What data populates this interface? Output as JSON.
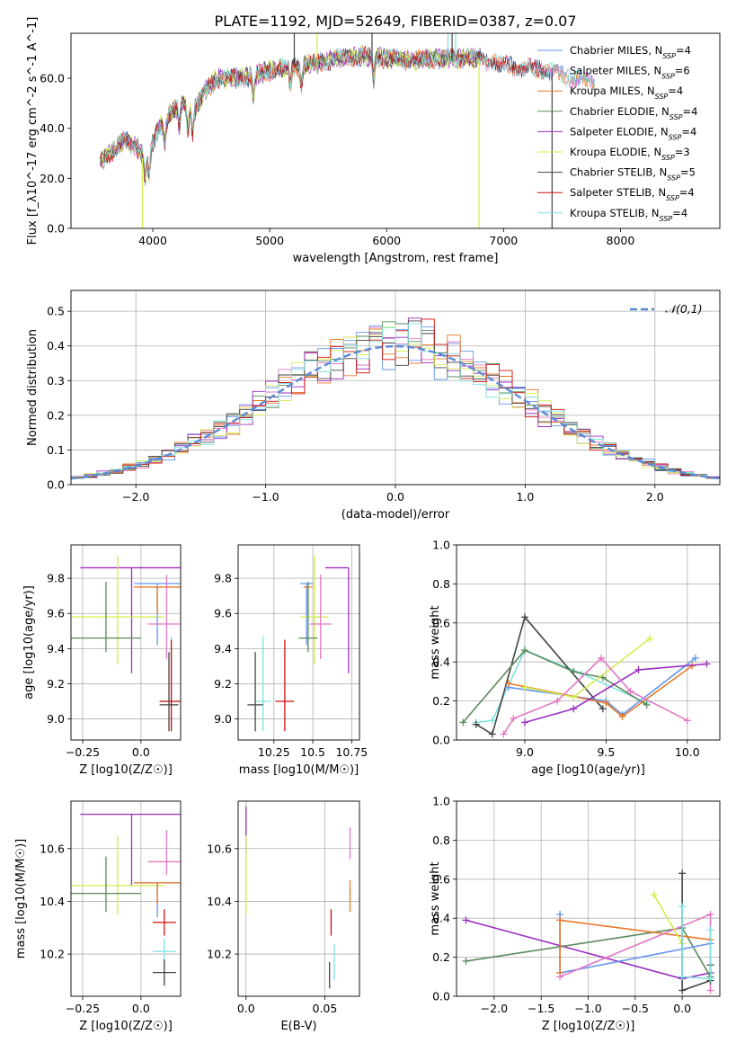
{
  "title": "PLATE=1192, MJD=52649, FIBERID=0387, z=0.07",
  "colors": {
    "chabrier_miles": "#6495ed",
    "salpeter_miles": "#e377c2",
    "kroupa_miles": "#e8792a",
    "chabrier_elodie": "#5b8a5b",
    "salpeter_elodie": "#9a2dc0",
    "kroupa_elodie": "#d4ed4a",
    "chabrier_stelib": "#444444",
    "salpeter_stelib": "#cc1111",
    "kroupa_stelib": "#7fe0e0",
    "normal": "#5b8ad6",
    "grid": "#b0b0b0"
  },
  "chart_data": [
    {
      "id": "spectrum",
      "type": "line",
      "xlabel": "wavelength [Angstrom, rest frame]",
      "ylabel": "Flux [f_λ10^-17 erg cm^-2 s^-1 A^-1]",
      "xlim": [
        3300,
        8850
      ],
      "ylim": [
        0,
        78
      ],
      "xticks": [
        4000,
        5000,
        6000,
        7000,
        8000
      ],
      "yticks": [
        0,
        20,
        40,
        60
      ],
      "grid": false,
      "legend_position": "top-right",
      "continuum": {
        "x": [
          3550,
          3650,
          3750,
          3850,
          3950,
          4050,
          4150,
          4250,
          4350,
          4450,
          4550,
          4700,
          4850,
          5000,
          5200,
          5400,
          5600,
          5800,
          6000,
          6200,
          6400,
          6600,
          6800,
          7000,
          7200,
          7400,
          7600,
          7800
        ],
        "y": [
          27,
          30,
          35,
          33,
          28,
          40,
          46,
          50,
          47,
          55,
          60,
          60,
          61,
          63,
          65,
          66,
          68,
          69,
          68,
          67,
          68,
          68,
          68,
          65,
          64,
          63,
          60,
          58
        ]
      },
      "series": [
        {
          "name": "Chabrier MILES, N_SSP=4",
          "color_key": "chabrier_miles",
          "end": 7780
        },
        {
          "name": "Salpeter MILES, N_SSP=6",
          "color_key": "salpeter_miles",
          "end": 7780
        },
        {
          "name": "Kroupa MILES, N_SSP=4",
          "color_key": "kroupa_miles",
          "end": 7780
        },
        {
          "name": "Chabrier ELODIE, N_SSP=4",
          "color_key": "chabrier_elodie",
          "end": 6800
        },
        {
          "name": "Salpeter ELODIE, N_SSP=4",
          "color_key": "salpeter_elodie",
          "end": 6800
        },
        {
          "name": "Kroupa ELODIE, N_SSP=3",
          "color_key": "kroupa_elodie",
          "end": 6800
        },
        {
          "name": "Chabrier STELIB, N_SSP=5",
          "color_key": "chabrier_stelib",
          "end": 7400
        },
        {
          "name": "Salpeter STELIB, N_SSP=4",
          "color_key": "salpeter_stelib",
          "end": 7400
        },
        {
          "name": "Kroupa STELIB, N_SSP=4",
          "color_key": "kroupa_stelib",
          "end": 7780
        }
      ],
      "spikes": [
        {
          "x": 3910,
          "ymin": 0,
          "ymax": 28,
          "color_key": "kroupa_elodie"
        },
        {
          "x": 5210,
          "ymin": 65,
          "ymax": 78,
          "color_key": "chabrier_stelib"
        },
        {
          "x": 5405,
          "ymin": 65,
          "ymax": 78,
          "color_key": "kroupa_elodie"
        },
        {
          "x": 5875,
          "ymin": 66,
          "ymax": 78,
          "color_key": "chabrier_stelib"
        },
        {
          "x": 6525,
          "ymin": 67,
          "ymax": 78,
          "color_key": "kroupa_stelib"
        },
        {
          "x": 6560,
          "ymin": 67,
          "ymax": 78,
          "color_key": "chabrier_stelib"
        },
        {
          "x": 6590,
          "ymin": 67,
          "ymax": 78,
          "color_key": "kroupa_stelib"
        },
        {
          "x": 6790,
          "ymin": 0,
          "ymax": 68,
          "color_key": "kroupa_elodie"
        },
        {
          "x": 7415,
          "ymin": 0,
          "ymax": 64,
          "color_key": "chabrier_stelib"
        }
      ]
    },
    {
      "id": "residuals",
      "type": "histogram",
      "xlabel": "(data-model)/error",
      "ylabel": "Normed distribution",
      "xlim": [
        -2.5,
        2.5
      ],
      "ylim": [
        0,
        0.56
      ],
      "xticks": [
        -2,
        -1,
        0,
        1,
        2
      ],
      "yticks": [
        0.0,
        0.1,
        0.2,
        0.3,
        0.4,
        0.5
      ],
      "grid": true,
      "legend_position": "top-right",
      "normal_label": "𝒩(0,1)",
      "bin_width": 0.1,
      "bin_start": -2.5,
      "bin_centers_reference": "gaussian"
    },
    {
      "id": "age_vs_Z",
      "type": "errorbar",
      "xlabel": "Z [log10(Z/Z☉)]",
      "ylabel": "age [log10(age/yr)]",
      "xlim": [
        -0.3,
        0.17
      ],
      "ylim": [
        8.88,
        9.99
      ],
      "xticks": [
        -0.25,
        0.0
      ],
      "yticks": [
        9.0,
        9.2,
        9.4,
        9.6,
        9.8
      ],
      "points": [
        {
          "color_key": "salpeter_elodie",
          "x": -0.04,
          "xerr": 0.22,
          "y": 9.86,
          "yerr_lo": 0.6,
          "yerr_hi": 0.0
        },
        {
          "color_key": "kroupa_elodie",
          "x": -0.1,
          "xerr": 0.2,
          "y": 9.58,
          "yerr_lo": 0.27,
          "yerr_hi": 0.35
        },
        {
          "color_key": "chabrier_elodie",
          "x": -0.15,
          "xerr": 0.15,
          "y": 9.46,
          "yerr_lo": 0.08,
          "yerr_hi": 0.32
        },
        {
          "color_key": "chabrier_miles",
          "x": 0.07,
          "xerr": 0.1,
          "y": 9.77,
          "yerr_lo": 0.35,
          "yerr_hi": 0.0
        },
        {
          "color_key": "kroupa_miles",
          "x": 0.07,
          "xerr": 0.1,
          "y": 9.75,
          "yerr_lo": 0.15,
          "yerr_hi": 0.0
        },
        {
          "color_key": "salpeter_miles",
          "x": 0.11,
          "xerr": 0.08,
          "y": 9.54,
          "yerr_lo": 0.2,
          "yerr_hi": 0.28
        },
        {
          "color_key": "kroupa_stelib",
          "x": 0.13,
          "xerr": 0.05,
          "y": 9.1,
          "yerr_lo": 0.17,
          "yerr_hi": 0.37
        },
        {
          "color_key": "salpeter_stelib",
          "x": 0.13,
          "xerr": 0.05,
          "y": 9.1,
          "yerr_lo": 0.17,
          "yerr_hi": 0.35
        },
        {
          "color_key": "chabrier_stelib",
          "x": 0.12,
          "xerr": 0.04,
          "y": 9.08,
          "yerr_lo": 0.15,
          "yerr_hi": 0.3
        }
      ]
    },
    {
      "id": "age_vs_mass",
      "type": "errorbar",
      "xlabel": "mass [log10(M/M☉)]",
      "ylabel": "",
      "xlim": [
        10.02,
        10.8
      ],
      "ylim": [
        8.88,
        9.99
      ],
      "xticks": [
        10.25,
        10.5,
        10.75
      ],
      "yticks": [
        9.0,
        9.2,
        9.4,
        9.6,
        9.8
      ],
      "points": [
        {
          "color_key": "salpeter_elodie",
          "x": 10.73,
          "xerr_lo": 0.15,
          "xerr_hi": 0.0,
          "y": 9.86,
          "yerr_lo": 0.6,
          "yerr_hi": 0.0
        },
        {
          "color_key": "chabrier_miles",
          "x": 10.46,
          "xerr": 0.04,
          "y": 9.77,
          "yerr_lo": 0.35,
          "yerr_hi": 0.0
        },
        {
          "color_key": "kroupa_miles",
          "x": 10.47,
          "xerr": 0.03,
          "y": 9.75,
          "yerr_lo": 0.15,
          "yerr_hi": 0.0
        },
        {
          "color_key": "kroupa_elodie",
          "x": 10.51,
          "xerr": 0.09,
          "y": 9.58,
          "yerr_lo": 0.27,
          "yerr_hi": 0.35
        },
        {
          "color_key": "salpeter_miles",
          "x": 10.55,
          "xerr": 0.07,
          "y": 9.54,
          "yerr_lo": 0.2,
          "yerr_hi": 0.28
        },
        {
          "color_key": "chabrier_elodie",
          "x": 10.47,
          "xerr": 0.06,
          "y": 9.46,
          "yerr_lo": 0.08,
          "yerr_hi": 0.32
        },
        {
          "color_key": "kroupa_stelib",
          "x": 10.18,
          "xerr": 0.05,
          "y": 9.1,
          "yerr_lo": 0.17,
          "yerr_hi": 0.37
        },
        {
          "color_key": "salpeter_stelib",
          "x": 10.32,
          "xerr": 0.06,
          "y": 9.1,
          "yerr_lo": 0.17,
          "yerr_hi": 0.35
        },
        {
          "color_key": "chabrier_stelib",
          "x": 10.13,
          "xerr": 0.05,
          "y": 9.08,
          "yerr_lo": 0.15,
          "yerr_hi": 0.3
        }
      ]
    },
    {
      "id": "weight_vs_age",
      "type": "line",
      "xlabel": "age [log10(age/yr)]",
      "ylabel": "mass weight",
      "xlim": [
        8.58,
        10.2
      ],
      "ylim": [
        0,
        1
      ],
      "xticks": [
        9.0,
        9.5,
        10.0
      ],
      "yticks": [
        0.0,
        0.2,
        0.4,
        0.6,
        0.8,
        1.0
      ],
      "series": [
        {
          "color_key": "kroupa_stelib",
          "x": [
            8.7,
            8.8,
            9.0,
            9.35,
            9.75
          ],
          "y": [
            0.09,
            0.1,
            0.46,
            0.34,
            0.19
          ]
        },
        {
          "color_key": "chabrier_stelib",
          "x": [
            8.7,
            8.8,
            9.0,
            9.48
          ],
          "y": [
            0.08,
            0.03,
            0.63,
            0.16
          ]
        },
        {
          "color_key": "chabrier_elodie",
          "x": [
            8.62,
            9.0,
            9.3,
            9.48,
            9.75
          ],
          "y": [
            0.09,
            0.46,
            0.35,
            0.32,
            0.18
          ]
        },
        {
          "color_key": "chabrier_miles",
          "x": [
            8.9,
            9.5,
            9.6,
            10.05
          ],
          "y": [
            0.27,
            0.2,
            0.13,
            0.42
          ]
        },
        {
          "color_key": "kroupa_miles",
          "x": [
            8.9,
            9.5,
            9.6,
            10.03
          ],
          "y": [
            0.29,
            0.19,
            0.12,
            0.38
          ]
        },
        {
          "color_key": "salpeter_elodie",
          "x": [
            9.0,
            9.3,
            9.7,
            10.12
          ],
          "y": [
            0.09,
            0.16,
            0.36,
            0.39
          ]
        },
        {
          "color_key": "kroupa_elodie",
          "x": [
            9.0,
            9.3,
            9.77
          ],
          "y": [
            0.27,
            0.22,
            0.52
          ]
        },
        {
          "color_key": "salpeter_miles",
          "x": [
            8.87,
            8.93,
            9.2,
            9.47,
            9.65,
            10.0
          ],
          "y": [
            0.03,
            0.11,
            0.2,
            0.42,
            0.25,
            0.1
          ]
        }
      ]
    },
    {
      "id": "mass_vs_Z",
      "type": "errorbar",
      "xlabel": "Z [log10(Z/Z☉)]",
      "ylabel": "mass [log10(M/M☉)]",
      "xlim": [
        -0.3,
        0.17
      ],
      "ylim": [
        10.04,
        10.78
      ],
      "xticks": [
        -0.25,
        0.0
      ],
      "yticks": [
        10.2,
        10.4,
        10.6
      ],
      "points": [
        {
          "color_key": "salpeter_elodie",
          "x": -0.04,
          "xerr": 0.22,
          "y": 10.73,
          "yerr_lo": 0.27,
          "yerr_hi": 0.0
        },
        {
          "color_key": "kroupa_elodie",
          "x": -0.1,
          "xerr": 0.2,
          "y": 10.46,
          "yerr_lo": 0.11,
          "yerr_hi": 0.19
        },
        {
          "color_key": "chabrier_elodie",
          "x": -0.15,
          "xerr": 0.15,
          "y": 10.43,
          "yerr_lo": 0.07,
          "yerr_hi": 0.14
        },
        {
          "color_key": "chabrier_miles",
          "x": 0.07,
          "xerr": 0.1,
          "y": 10.47,
          "yerr_lo": 0.13,
          "yerr_hi": 0.0
        },
        {
          "color_key": "kroupa_miles",
          "x": 0.07,
          "xerr": 0.1,
          "y": 10.47,
          "yerr_lo": 0.08,
          "yerr_hi": 0.0
        },
        {
          "color_key": "salpeter_miles",
          "x": 0.11,
          "xerr": 0.08,
          "y": 10.55,
          "yerr_lo": 0.05,
          "yerr_hi": 0.12
        },
        {
          "color_key": "salpeter_stelib",
          "x": 0.1,
          "xerr": 0.05,
          "y": 10.32,
          "yerr_lo": 0.05,
          "yerr_hi": 0.05
        },
        {
          "color_key": "kroupa_stelib",
          "x": 0.1,
          "xerr": 0.05,
          "y": 10.21,
          "yerr_lo": 0.06,
          "yerr_hi": 0.05
        },
        {
          "color_key": "chabrier_stelib",
          "x": 0.1,
          "xerr": 0.05,
          "y": 10.13,
          "yerr_lo": 0.05,
          "yerr_hi": 0.05
        }
      ]
    },
    {
      "id": "mass_vs_ebv",
      "type": "errorbar",
      "xlabel": "E(B-V)",
      "ylabel": "",
      "xlim": [
        -0.005,
        0.072
      ],
      "ylim": [
        10.04,
        10.78
      ],
      "xticks": [
        0.0,
        0.05
      ],
      "yticks": [
        10.2,
        10.4,
        10.6
      ],
      "points": [
        {
          "color_key": "salpeter_elodie",
          "x": 0.0,
          "y": 10.66,
          "yerr_lo": 0.08,
          "yerr_hi": 0.1
        },
        {
          "color_key": "kroupa_elodie",
          "x": 0.0,
          "y": 10.5,
          "yerr_lo": 0.15,
          "yerr_hi": 0.15
        },
        {
          "color_key": "salpeter_miles",
          "x": 0.066,
          "y": 10.62,
          "yerr_lo": 0.06,
          "yerr_hi": 0.06
        },
        {
          "color_key": "kroupa_miles",
          "x": 0.066,
          "y": 10.42,
          "yerr_lo": 0.06,
          "yerr_hi": 0.06
        },
        {
          "color_key": "salpeter_stelib",
          "x": 0.054,
          "y": 10.32,
          "yerr_lo": 0.05,
          "yerr_hi": 0.05
        },
        {
          "color_key": "kroupa_stelib",
          "x": 0.056,
          "y": 10.17,
          "yerr_lo": 0.07,
          "yerr_hi": 0.07
        },
        {
          "color_key": "chabrier_stelib",
          "x": 0.053,
          "y": 10.12,
          "yerr_lo": 0.05,
          "yerr_hi": 0.05
        }
      ]
    },
    {
      "id": "weight_vs_Z",
      "type": "line",
      "xlabel": "Z [log10(Z/Z☉)]",
      "ylabel": "mass weight",
      "xlim": [
        -2.4,
        0.4
      ],
      "ylim": [
        0,
        1
      ],
      "xticks": [
        -2.0,
        -1.5,
        -1.0,
        -0.5,
        0.0
      ],
      "yticks": [
        0.0,
        0.2,
        0.4,
        0.6,
        0.8,
        1.0
      ],
      "series": [
        {
          "color_key": "salpeter_elodie",
          "x": [
            -2.3,
            0.0,
            0.3
          ],
          "y": [
            0.39,
            0.09,
            0.12
          ]
        },
        {
          "color_key": "chabrier_elodie",
          "x": [
            -2.3,
            0.0,
            0.3
          ],
          "y": [
            0.18,
            0.35,
            0.1
          ]
        },
        {
          "color_key": "chabrier_miles",
          "x": [
            -1.3,
            -1.3,
            0.3
          ],
          "y": [
            0.42,
            0.12,
            0.27
          ]
        },
        {
          "color_key": "kroupa_miles",
          "x": [
            -1.3,
            -1.3,
            0.3
          ],
          "y": [
            0.12,
            0.39,
            0.29
          ]
        },
        {
          "color_key": "salpeter_miles",
          "x": [
            -1.3,
            0.3,
            0.3
          ],
          "y": [
            0.1,
            0.42,
            0.03
          ]
        },
        {
          "color_key": "kroupa_elodie",
          "x": [
            -0.3,
            0.0
          ],
          "y": [
            0.52,
            0.27
          ]
        },
        {
          "color_key": "chabrier_stelib",
          "x": [
            0.0,
            0.0,
            0.3,
            0.3
          ],
          "y": [
            0.63,
            0.03,
            0.08,
            0.16
          ]
        },
        {
          "color_key": "kroupa_stelib",
          "x": [
            0.0,
            0.0,
            0.3,
            0.3
          ],
          "y": [
            0.46,
            0.1,
            0.09,
            0.34
          ]
        }
      ]
    }
  ]
}
